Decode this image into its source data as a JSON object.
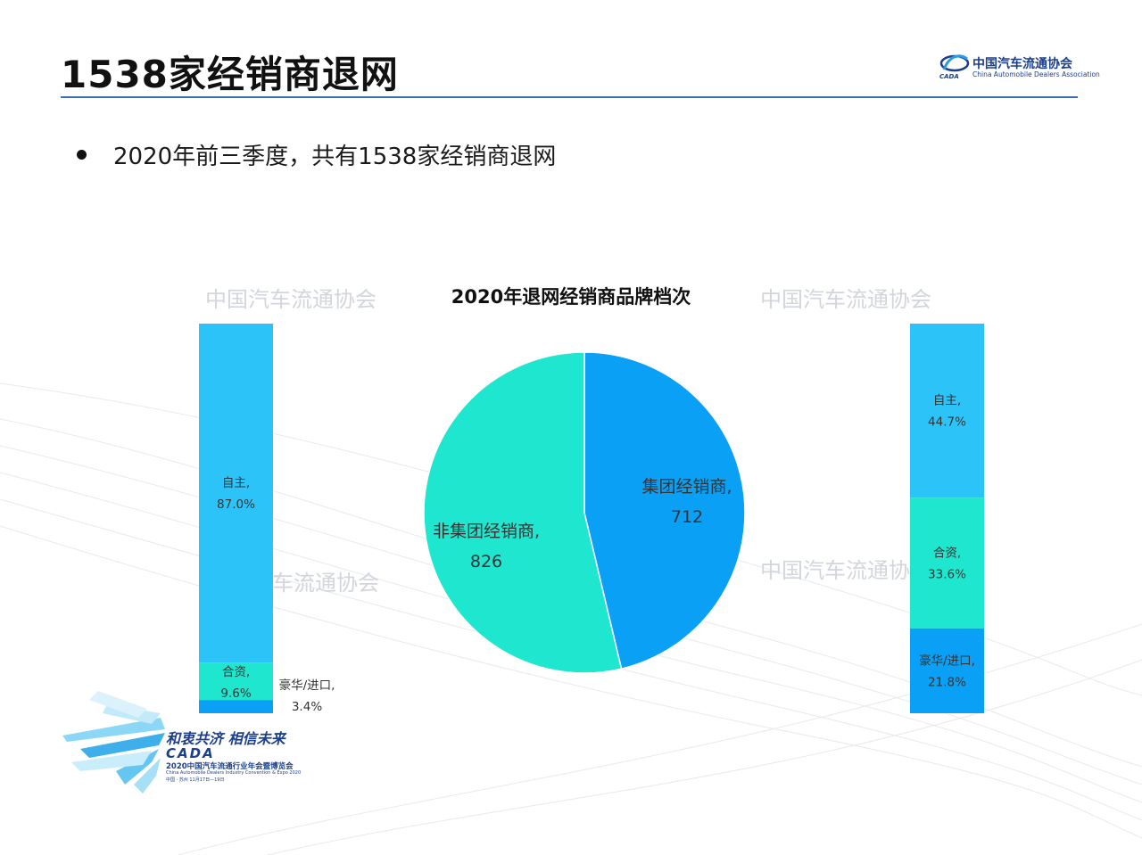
{
  "header": {
    "title": "1538家经销商退网",
    "logo_cn": "中国汽车流通协会",
    "logo_en": "China Automobile Dealers Association",
    "logo_mark": "CADA"
  },
  "bullet": {
    "text": "2020年前三季度，共有1538家经销商退网"
  },
  "watermarks": {
    "top_left": "中国汽车流通协会",
    "top_right": "中国汽车流通协会",
    "mid_left": "车流通协会",
    "mid_right": "中国汽车流通协"
  },
  "chart_data": [
    {
      "type": "pie",
      "title": "2020年退网经销商品牌档次",
      "categories": [
        "集团经销商",
        "非集团经销商"
      ],
      "values": [
        712,
        826
      ],
      "labels": [
        "集团经销商,",
        "非集团经销商,"
      ],
      "value_labels": [
        "712",
        "826"
      ],
      "colors": [
        "#0aa0f5",
        "#1ee6cf"
      ]
    },
    {
      "type": "bar",
      "stacked": "percent",
      "series_of": "非集团经销商",
      "categories": [
        "自主",
        "合资",
        "豪华/进口"
      ],
      "values": [
        87.0,
        9.6,
        3.4
      ],
      "labels": [
        "自主,",
        "合资,",
        "豪华/进口,"
      ],
      "value_labels": [
        "87.0%",
        "9.6%",
        "3.4%"
      ],
      "colors": [
        "#2cc3f8",
        "#1ee6cf",
        "#0aa0f5"
      ]
    },
    {
      "type": "bar",
      "stacked": "percent",
      "series_of": "集团经销商",
      "categories": [
        "自主",
        "合资",
        "豪华/进口"
      ],
      "values": [
        44.7,
        33.6,
        21.8
      ],
      "labels": [
        "自主,",
        "合资,",
        "豪华/进口,"
      ],
      "value_labels": [
        "44.7%",
        "33.6%",
        "21.8%"
      ],
      "colors": [
        "#2cc3f8",
        "#1ee6cf",
        "#0aa0f5"
      ]
    }
  ],
  "footer": {
    "slogan": "和衷共济  相信未来",
    "brand": "CADA",
    "line1": "2020中国汽车流通行业年会暨博览会",
    "line2": "China Automobile Dealers Industry Convention & Expo 2020",
    "line3": "中国 · 苏州  11月17日—19日"
  }
}
